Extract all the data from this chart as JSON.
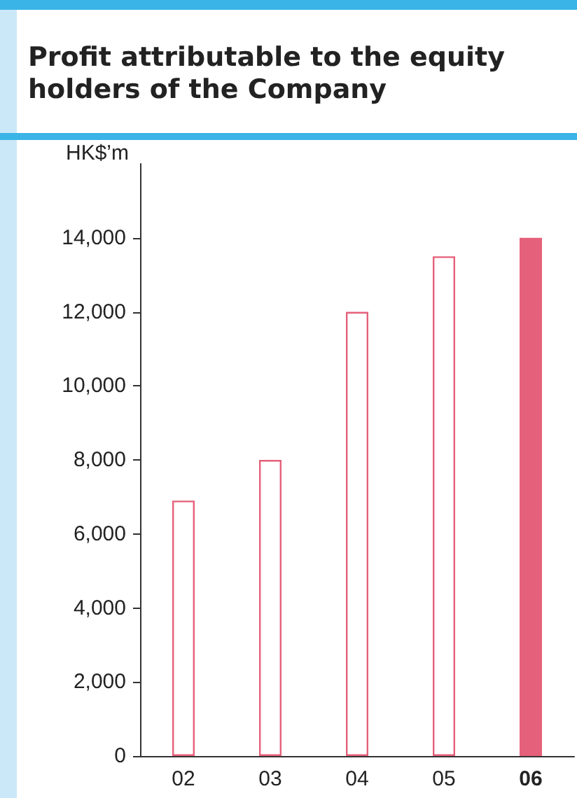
{
  "chart_data": {
    "type": "bar",
    "title": "Profit attributable to the equity holders of the Company",
    "ylabel": "HK$’m",
    "categories": [
      "02",
      "03",
      "04",
      "05",
      "06"
    ],
    "values": [
      6900,
      8000,
      12000,
      13500,
      14000
    ],
    "color": "#e5607a",
    "colors": [
      "#ffffff",
      "#ffffff",
      "#ffffff",
      "#ffffff",
      "#e5607a"
    ],
    "ylim": [
      0,
      16000
    ],
    "yticks": [
      0,
      {
        "value": 2000,
        "label": "2,000"
      },
      {
        "value": 4000,
        "label": "4,000"
      },
      {
        "value": 6000,
        "label": "6,000"
      },
      {
        "value": 8000,
        "label": "8,000"
      },
      {
        "value": 10000,
        "label": "10,000"
      },
      {
        "value": 12000,
        "label": "12,000"
      },
      {
        "value": 14000,
        "label": "14,000"
      }
    ],
    "grid": false
  }
}
